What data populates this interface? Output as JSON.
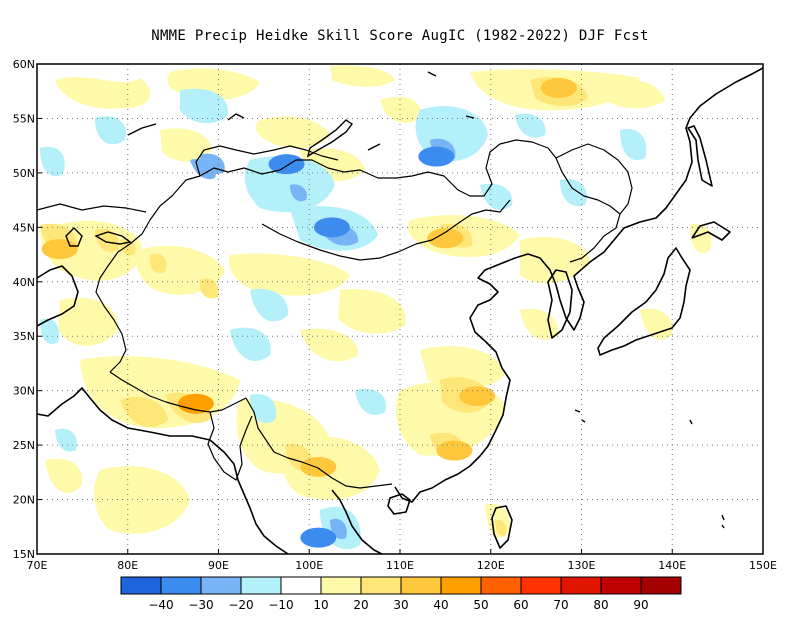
{
  "title": "NMME Precip Heidke Skill Score AugIC (1982-2022) DJF Fcst",
  "map": {
    "lon_range": [
      70,
      150
    ],
    "lat_range": [
      15,
      60
    ],
    "grid": "dotted",
    "lat_ticks": [
      "15N",
      "20N",
      "25N",
      "30N",
      "35N",
      "40N",
      "45N",
      "50N",
      "55N",
      "60N"
    ],
    "lon_ticks": [
      "70E",
      "80E",
      "90E",
      "100E",
      "110E",
      "120E",
      "130E",
      "140E",
      "150E"
    ]
  },
  "colorbar": {
    "colors": [
      "#1e64dc",
      "#3c8cf0",
      "#78b4f5",
      "#b4f0fa",
      "#ffffff",
      "#fffaaa",
      "#ffe678",
      "#ffc83c",
      "#ffa000",
      "#ff6000",
      "#ff3200",
      "#e11400",
      "#c00000",
      "#a50000"
    ],
    "labels": [
      "-40",
      "-30",
      "-20",
      "-10",
      "10",
      "20",
      "30",
      "40",
      "50",
      "60",
      "70",
      "80",
      "90"
    ]
  },
  "skill_patches": [
    {
      "lon": 127.5,
      "lat": 57.8,
      "category": "40",
      "color": "#ffc83c"
    },
    {
      "lon": 87.5,
      "lat": 28.8,
      "category": "50",
      "color": "#ffa000"
    },
    {
      "lon": 118.5,
      "lat": 29.5,
      "category": "40",
      "color": "#ffc83c"
    },
    {
      "lon": 72.5,
      "lat": 43.0,
      "category": "40",
      "color": "#ffc83c"
    },
    {
      "lon": 116.0,
      "lat": 24.5,
      "category": "40",
      "color": "#ffc83c"
    },
    {
      "lon": 101.0,
      "lat": 23.0,
      "category": "40",
      "color": "#ffc83c"
    },
    {
      "lon": 115.0,
      "lat": 44.0,
      "category": "40",
      "color": "#ffc83c"
    },
    {
      "lon": 97.5,
      "lat": 50.8,
      "category": "-30",
      "color": "#3c8cf0"
    },
    {
      "lon": 114.0,
      "lat": 51.5,
      "category": "-30",
      "color": "#3c8cf0"
    },
    {
      "lon": 102.5,
      "lat": 45.0,
      "category": "-30",
      "color": "#3c8cf0"
    },
    {
      "lon": 101.0,
      "lat": 16.5,
      "category": "-30",
      "color": "#3c8cf0"
    }
  ]
}
